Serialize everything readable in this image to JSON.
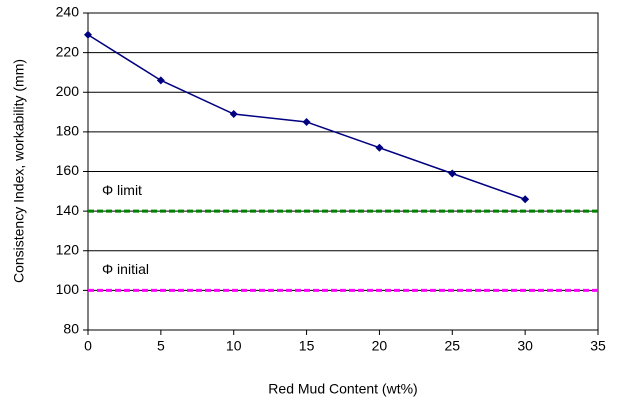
{
  "chart_data": {
    "type": "line",
    "x_label": "Red Mud Content (wt%)",
    "y_label": "Consistency Index, workability (mm)",
    "xlim": [
      0,
      35
    ],
    "xticks": [
      0,
      5,
      10,
      15,
      20,
      25,
      30,
      35
    ],
    "ylim": [
      80,
      240
    ],
    "yticks": [
      80,
      100,
      120,
      140,
      160,
      180,
      200,
      220,
      240
    ],
    "grid": true,
    "series": [
      {
        "color": "#000080",
        "x": [
          0,
          5,
          10,
          15,
          20,
          25,
          30
        ],
        "values": [
          229,
          206,
          189,
          185,
          172,
          159,
          146
        ],
        "marker": "diamond"
      },
      {
        "name": "Φ limit",
        "color": "#008000",
        "x": [
          0,
          35
        ],
        "values": [
          140,
          140
        ],
        "dashed": true
      },
      {
        "name": "Φ initial",
        "color": "#ff00ff",
        "x": [
          0,
          35
        ],
        "values": [
          100,
          100
        ],
        "dashed": true
      }
    ]
  }
}
